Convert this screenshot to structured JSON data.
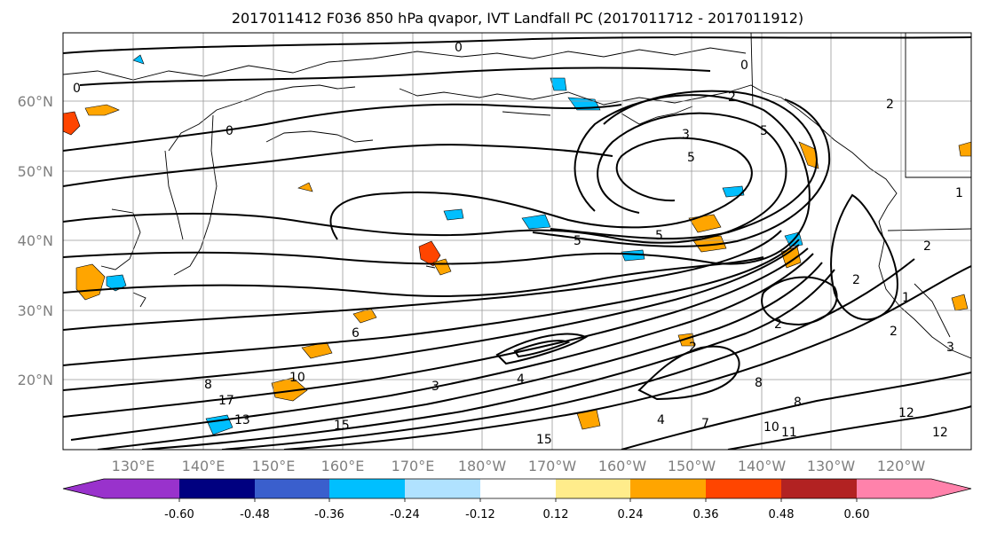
{
  "title": "2017011412 F036 850 hPa qvapor, IVT Landfall PC (2017011712 - 2017011912)",
  "lat_labels": [
    "60°N",
    "50°N",
    "40°N",
    "30°N",
    "20°N"
  ],
  "lon_labels": [
    "130°E",
    "140°E",
    "150°E",
    "160°E",
    "170°E",
    "180°W",
    "170°W",
    "160°W",
    "150°W",
    "140°W",
    "130°W",
    "120°W"
  ],
  "colorbar": {
    "colors": [
      "#9932cc",
      "#000080",
      "#3a5fcd",
      "#00bfff",
      "#b0e2ff",
      "#ffffff",
      "#ffec8b",
      "#ffa500",
      "#ff4500",
      "#b22222",
      "#ff82ab"
    ],
    "tick_labels": [
      "-0.60",
      "-0.48",
      "-0.36",
      "-0.24",
      "-0.12",
      "0.12",
      "0.24",
      "0.36",
      "0.48",
      "0.60"
    ]
  },
  "contour_labels": [
    "0",
    "0",
    "0",
    "0",
    "2",
    "2",
    "2",
    "2",
    "3",
    "5",
    "5",
    "5",
    "5",
    "1",
    "1",
    "2",
    "8",
    "6",
    "8",
    "8",
    "10",
    "10",
    "11",
    "12",
    "12",
    "13",
    "15",
    "15",
    "17",
    "4",
    "4",
    "2",
    "2",
    "3",
    "3",
    "7"
  ]
}
